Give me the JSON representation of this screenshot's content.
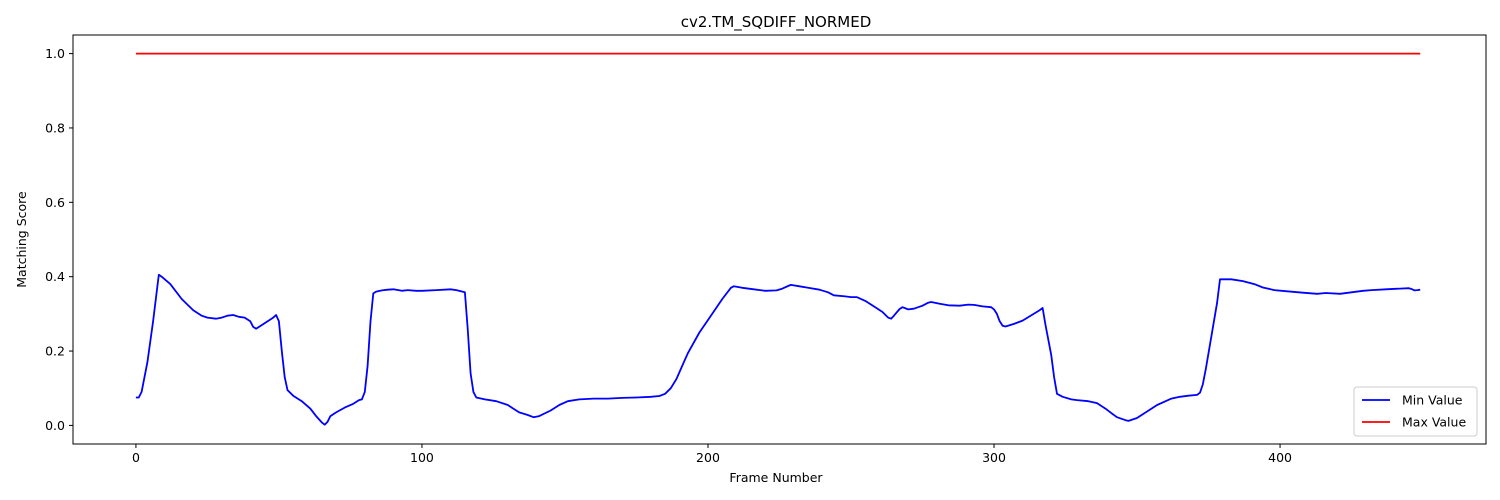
{
  "chart_data": {
    "type": "line",
    "title": "cv2.TM_SQDIFF_NORMED",
    "xlabel": "Frame Number",
    "ylabel": "Matching Score",
    "xlim": [
      -22,
      472
    ],
    "ylim": [
      -0.05,
      1.05
    ],
    "xticks": [
      0,
      100,
      200,
      300,
      400
    ],
    "yticks": [
      0.0,
      0.2,
      0.4,
      0.6,
      0.8,
      1.0
    ],
    "grid": false,
    "legend_position": "lower-right",
    "series": [
      {
        "name": "Min Value",
        "color": "#0000ff",
        "points": [
          [
            0,
            0.075
          ],
          [
            1,
            0.075
          ],
          [
            2,
            0.09
          ],
          [
            4,
            0.17
          ],
          [
            6,
            0.28
          ],
          [
            8,
            0.405
          ],
          [
            9,
            0.4
          ],
          [
            12,
            0.38
          ],
          [
            16,
            0.34
          ],
          [
            20,
            0.31
          ],
          [
            23,
            0.295
          ],
          [
            25,
            0.29
          ],
          [
            28,
            0.287
          ],
          [
            30,
            0.29
          ],
          [
            32,
            0.295
          ],
          [
            34,
            0.297
          ],
          [
            36,
            0.292
          ],
          [
            38,
            0.29
          ],
          [
            40,
            0.28
          ],
          [
            41,
            0.265
          ],
          [
            42,
            0.26
          ],
          [
            45,
            0.275
          ],
          [
            48,
            0.29
          ],
          [
            49,
            0.297
          ],
          [
            50,
            0.28
          ],
          [
            51,
            0.2
          ],
          [
            52,
            0.13
          ],
          [
            53,
            0.095
          ],
          [
            55,
            0.08
          ],
          [
            58,
            0.065
          ],
          [
            61,
            0.045
          ],
          [
            63,
            0.025
          ],
          [
            65,
            0.008
          ],
          [
            66,
            0.002
          ],
          [
            67,
            0.01
          ],
          [
            68,
            0.025
          ],
          [
            70,
            0.035
          ],
          [
            73,
            0.048
          ],
          [
            76,
            0.058
          ],
          [
            78,
            0.068
          ],
          [
            79,
            0.07
          ],
          [
            80,
            0.09
          ],
          [
            81,
            0.16
          ],
          [
            82,
            0.28
          ],
          [
            83,
            0.355
          ],
          [
            84,
            0.36
          ],
          [
            86,
            0.363
          ],
          [
            88,
            0.365
          ],
          [
            90,
            0.366
          ],
          [
            93,
            0.362
          ],
          [
            95,
            0.364
          ],
          [
            98,
            0.362
          ],
          [
            100,
            0.362
          ],
          [
            105,
            0.364
          ],
          [
            110,
            0.366
          ],
          [
            112,
            0.364
          ],
          [
            115,
            0.358
          ],
          [
            116,
            0.26
          ],
          [
            117,
            0.14
          ],
          [
            118,
            0.09
          ],
          [
            119,
            0.075
          ],
          [
            122,
            0.07
          ],
          [
            126,
            0.065
          ],
          [
            130,
            0.055
          ],
          [
            132,
            0.045
          ],
          [
            134,
            0.035
          ],
          [
            137,
            0.028
          ],
          [
            139,
            0.022
          ],
          [
            141,
            0.025
          ],
          [
            145,
            0.04
          ],
          [
            148,
            0.055
          ],
          [
            151,
            0.065
          ],
          [
            155,
            0.07
          ],
          [
            160,
            0.072
          ],
          [
            165,
            0.072
          ],
          [
            170,
            0.074
          ],
          [
            175,
            0.075
          ],
          [
            180,
            0.077
          ],
          [
            183,
            0.079
          ],
          [
            185,
            0.085
          ],
          [
            187,
            0.1
          ],
          [
            189,
            0.125
          ],
          [
            191,
            0.16
          ],
          [
            193,
            0.195
          ],
          [
            197,
            0.25
          ],
          [
            201,
            0.295
          ],
          [
            205,
            0.34
          ],
          [
            208,
            0.37
          ],
          [
            209,
            0.374
          ],
          [
            212,
            0.37
          ],
          [
            216,
            0.366
          ],
          [
            220,
            0.362
          ],
          [
            224,
            0.363
          ],
          [
            226,
            0.368
          ],
          [
            228,
            0.375
          ],
          [
            229,
            0.378
          ],
          [
            232,
            0.374
          ],
          [
            235,
            0.37
          ],
          [
            239,
            0.365
          ],
          [
            242,
            0.358
          ],
          [
            244,
            0.35
          ],
          [
            248,
            0.347
          ],
          [
            250,
            0.345
          ],
          [
            252,
            0.345
          ],
          [
            255,
            0.335
          ],
          [
            258,
            0.32
          ],
          [
            261,
            0.305
          ],
          [
            263,
            0.29
          ],
          [
            264,
            0.287
          ],
          [
            265,
            0.295
          ],
          [
            267,
            0.313
          ],
          [
            268,
            0.318
          ],
          [
            270,
            0.312
          ],
          [
            272,
            0.314
          ],
          [
            275,
            0.322
          ],
          [
            277,
            0.33
          ],
          [
            278,
            0.332
          ],
          [
            281,
            0.327
          ],
          [
            284,
            0.323
          ],
          [
            288,
            0.322
          ],
          [
            291,
            0.325
          ],
          [
            293,
            0.324
          ],
          [
            296,
            0.32
          ],
          [
            299,
            0.318
          ],
          [
            300,
            0.312
          ],
          [
            301,
            0.3
          ],
          [
            302,
            0.28
          ],
          [
            303,
            0.268
          ],
          [
            304,
            0.266
          ],
          [
            307,
            0.273
          ],
          [
            310,
            0.282
          ],
          [
            313,
            0.296
          ],
          [
            316,
            0.31
          ],
          [
            317,
            0.316
          ],
          [
            318,
            0.27
          ],
          [
            320,
            0.19
          ],
          [
            321,
            0.13
          ],
          [
            322,
            0.085
          ],
          [
            324,
            0.077
          ],
          [
            327,
            0.07
          ],
          [
            329,
            0.068
          ],
          [
            333,
            0.065
          ],
          [
            336,
            0.06
          ],
          [
            339,
            0.045
          ],
          [
            341,
            0.033
          ],
          [
            343,
            0.022
          ],
          [
            346,
            0.014
          ],
          [
            347,
            0.012
          ],
          [
            350,
            0.02
          ],
          [
            352,
            0.03
          ],
          [
            355,
            0.045
          ],
          [
            357,
            0.055
          ],
          [
            360,
            0.065
          ],
          [
            362,
            0.072
          ],
          [
            365,
            0.077
          ],
          [
            368,
            0.08
          ],
          [
            371,
            0.082
          ],
          [
            372,
            0.088
          ],
          [
            373,
            0.11
          ],
          [
            374,
            0.15
          ],
          [
            376,
            0.24
          ],
          [
            378,
            0.33
          ],
          [
            379,
            0.393
          ],
          [
            383,
            0.393
          ],
          [
            387,
            0.388
          ],
          [
            391,
            0.38
          ],
          [
            394,
            0.371
          ],
          [
            398,
            0.364
          ],
          [
            402,
            0.361
          ],
          [
            408,
            0.357
          ],
          [
            413,
            0.354
          ],
          [
            416,
            0.356
          ],
          [
            421,
            0.354
          ],
          [
            424,
            0.357
          ],
          [
            429,
            0.362
          ],
          [
            432,
            0.364
          ],
          [
            437,
            0.366
          ],
          [
            442,
            0.368
          ],
          [
            445,
            0.369
          ],
          [
            446,
            0.367
          ],
          [
            447,
            0.363
          ],
          [
            448,
            0.364
          ],
          [
            449,
            0.365
          ]
        ]
      },
      {
        "name": "Max Value",
        "color": "#ff0000",
        "points": [
          [
            0,
            1.0
          ],
          [
            449,
            1.0
          ]
        ]
      }
    ]
  }
}
